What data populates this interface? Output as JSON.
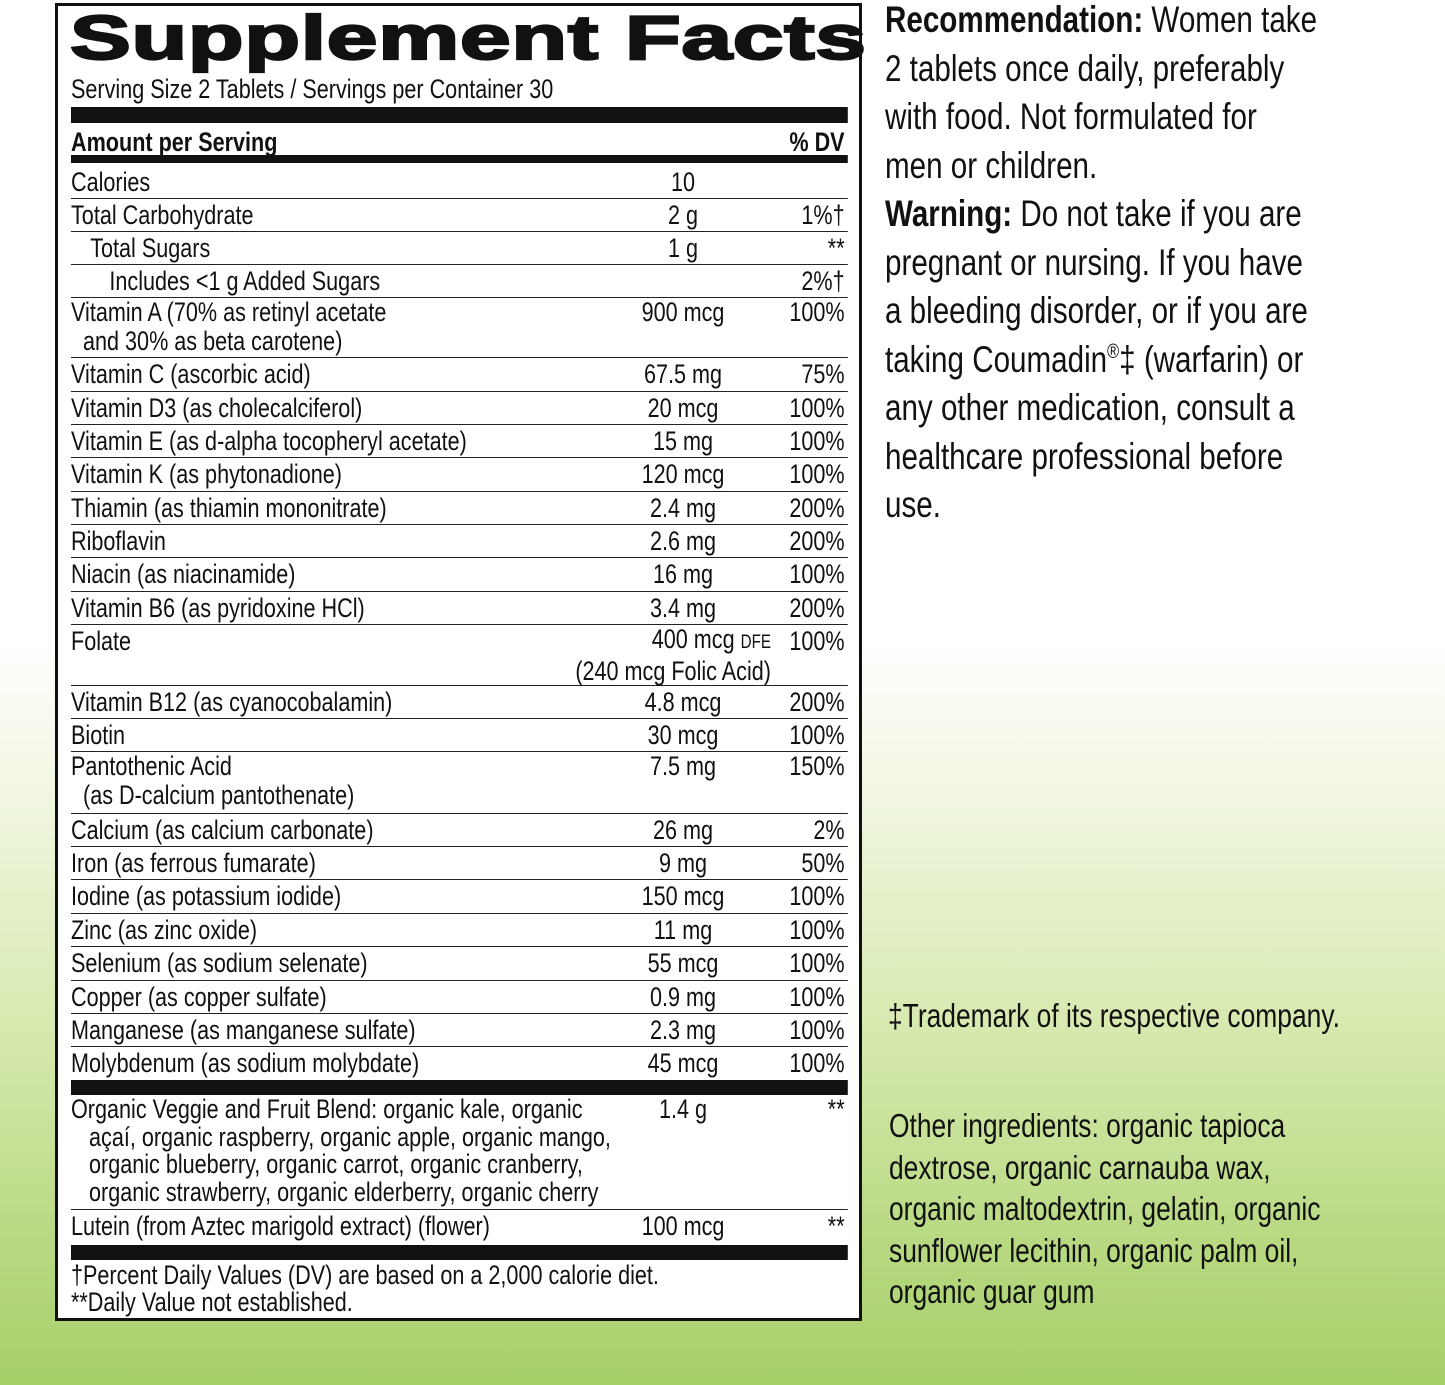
{
  "label": {
    "title": "Supplement Facts",
    "serving": "Serving Size 2 Tablets / Servings per Container 30",
    "header_left": "Amount per Serving",
    "header_right": "% DV",
    "rows": [
      {
        "name": [
          "Calories"
        ],
        "amount": "10",
        "dv": "",
        "indent": 0,
        "h": 33
      },
      {
        "name": [
          "Total Carbohydrate"
        ],
        "amount": "2 g",
        "dv": "1%†",
        "indent": 0,
        "h": 33
      },
      {
        "name": [
          "Total Sugars"
        ],
        "amount": "1 g",
        "dv": "**",
        "indent": 1,
        "h": 33
      },
      {
        "name": [
          "Includes <1 g Added Sugars"
        ],
        "amount": "",
        "dv": "2%†",
        "indent": 2,
        "h": 33
      },
      {
        "name": [
          "Vitamin A (70% as retinyl acetate",
          "  and 30% as beta carotene)"
        ],
        "amount": "900 mcg",
        "dv": "100%",
        "indent": 0,
        "h": 60
      },
      {
        "name": [
          "Vitamin C (ascorbic acid)"
        ],
        "amount": "67.5 mg",
        "dv": "75%",
        "indent": 0,
        "h": 34
      },
      {
        "name": [
          "Vitamin D3 (as cholecalciferol)"
        ],
        "amount": "20 mcg",
        "dv": "100%",
        "indent": 0,
        "h": 33
      },
      {
        "name": [
          "Vitamin E (as d-alpha tocopheryl acetate)"
        ],
        "amount": "15 mg",
        "dv": "100%",
        "indent": 0,
        "h": 33
      },
      {
        "name": [
          "Vitamin K (as phytonadione)"
        ],
        "amount": "120 mcg",
        "dv": "100%",
        "indent": 0,
        "h": 34
      },
      {
        "name": [
          "Thiamin (as thiamin mononitrate)"
        ],
        "amount": "2.4 mg",
        "dv": "200%",
        "indent": 0,
        "h": 33
      },
      {
        "name": [
          "Riboflavin"
        ],
        "amount": "2.6 mg",
        "dv": "200%",
        "indent": 0,
        "h": 33
      },
      {
        "name": [
          "Niacin (as niacinamide)"
        ],
        "amount": "16 mg",
        "dv": "100%",
        "indent": 0,
        "h": 34
      },
      {
        "name": [
          "Vitamin B6 (as pyridoxine HCl)"
        ],
        "amount": "3.4 mg",
        "dv": "200%",
        "indent": 0,
        "h": 33
      },
      {
        "name": [
          "Folate"
        ],
        "amount": "400 mcg",
        "amount_unit": "DFE",
        "amount2": "(240 mcg Folic Acid)",
        "dv": "100%",
        "indent": 0,
        "h": 61
      },
      {
        "name": [
          "Vitamin B12 (as cyanocobalamin)"
        ],
        "amount": "4.8 mcg",
        "dv": "200%",
        "indent": 0,
        "h": 33
      },
      {
        "name": [
          "Biotin"
        ],
        "amount": "30 mcg",
        "dv": "100%",
        "indent": 0,
        "h": 33
      },
      {
        "name": [
          "Pantothenic Acid",
          "  (as D-calcium pantothenate)"
        ],
        "amount": "7.5 mg",
        "dv": "150%",
        "indent": 0,
        "h": 62
      },
      {
        "name": [
          "Calcium (as calcium carbonate)"
        ],
        "amount": "26 mg",
        "dv": "2%",
        "indent": 0,
        "h": 33
      },
      {
        "name": [
          "Iron (as ferrous fumarate)"
        ],
        "amount": "9 mg",
        "dv": "50%",
        "indent": 0,
        "h": 33
      },
      {
        "name": [
          "Iodine (as potassium iodide)"
        ],
        "amount": "150 mcg",
        "dv": "100%",
        "indent": 0,
        "h": 34
      },
      {
        "name": [
          "Zinc (as zinc oxide)"
        ],
        "amount": "11 mg",
        "dv": "100%",
        "indent": 0,
        "h": 33
      },
      {
        "name": [
          "Selenium (as sodium selenate)"
        ],
        "amount": "55 mcg",
        "dv": "100%",
        "indent": 0,
        "h": 34
      },
      {
        "name": [
          "Copper (as copper sulfate)"
        ],
        "amount": "0.9 mg",
        "dv": "100%",
        "indent": 0,
        "h": 33
      },
      {
        "name": [
          "Manganese (as manganese sulfate)"
        ],
        "amount": "2.3 mg",
        "dv": "100%",
        "indent": 0,
        "h": 33
      },
      {
        "name": [
          "Molybdenum (as sodium molybdate)"
        ],
        "amount": "45 mcg",
        "dv": "100%",
        "indent": 0,
        "h": 34,
        "last": true
      }
    ],
    "blend_rows": [
      {
        "name": [
          "Organic Veggie and Fruit Blend: organic kale, organic",
          "   açaí, organic raspberry, organic apple, organic mango,",
          "   organic blueberry, organic carrot, organic cranberry,",
          "   organic strawberry, organic elderberry, organic cherry"
        ],
        "amount": "1.4 g",
        "dv": "**",
        "indent": 0,
        "h": 114
      },
      {
        "name": [
          "Lutein (from Aztec marigold extract) (flower)"
        ],
        "amount": "100 mcg",
        "dv": "**",
        "indent": 0,
        "h": 34,
        "last": true
      }
    ],
    "footnotes": [
      "†Percent Daily Values (DV) are based on a 2,000 calorie diet.",
      "**Daily Value not established."
    ]
  },
  "recommendation": {
    "label": "Recommendation:",
    "lines": [
      " Women take",
      "2 tablets once daily, preferably",
      "with food. Not formulated for",
      "men or children."
    ]
  },
  "warning": {
    "label": "Warning:",
    "lines": [
      " Do not take if you are",
      "pregnant or nursing. If you have",
      "a bleeding disorder, or if you are",
      "taking Coumadin",
      "any other medication, consult a",
      "healthcare professional before",
      "use."
    ],
    "coumadin_mark": "®",
    "coumadin_rest": "‡ (warfarin) or"
  },
  "trademark": "‡Trademark of its respective company.",
  "other_ingredients": [
    "Other ingredients: organic tapioca",
    "dextrose, organic carnauba wax,",
    "organic maltodextrin, gelatin, organic",
    "sunflower lecithin, organic palm oil,",
    "organic guar gum"
  ],
  "colors": {
    "background_top": "#ffffff",
    "background_bottom": "#a5cf69",
    "text": "#111111"
  }
}
